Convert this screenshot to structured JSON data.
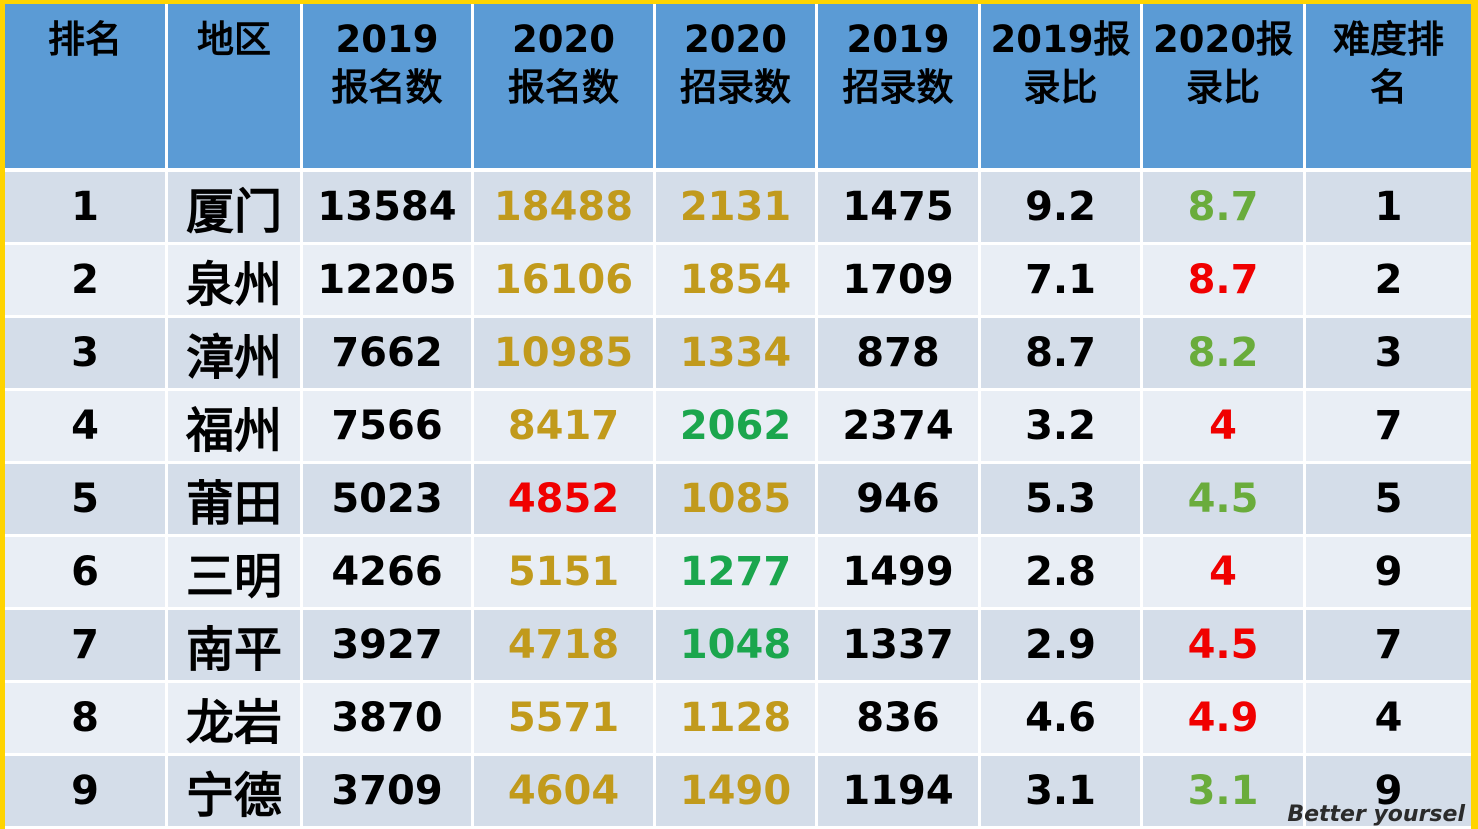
{
  "table": {
    "headers": [
      [
        "排名"
      ],
      [
        "地区"
      ],
      [
        "2019",
        "报名数"
      ],
      [
        "2020",
        "报名数"
      ],
      [
        "2020",
        "招录数"
      ],
      [
        "2019",
        "招录数"
      ],
      [
        "2019报",
        "录比"
      ],
      [
        "2020报",
        "录比"
      ],
      [
        "难度排",
        "名"
      ]
    ],
    "rows": [
      [
        "1",
        "厦门",
        "13584",
        "18488",
        "2131",
        "1475",
        "9.2",
        "8.7",
        "1"
      ],
      [
        "2",
        "泉州",
        "12205",
        "16106",
        "1854",
        "1709",
        "7.1",
        "8.7",
        "2"
      ],
      [
        "3",
        "漳州",
        "7662",
        "10985",
        "1334",
        "878",
        "8.7",
        "8.2",
        "3"
      ],
      [
        "4",
        "福州",
        "7566",
        "8417",
        "2062",
        "2374",
        "3.2",
        "4",
        "7"
      ],
      [
        "5",
        "莆田",
        "5023",
        "4852",
        "1085",
        "946",
        "5.3",
        "4.5",
        "5"
      ],
      [
        "6",
        "三明",
        "4266",
        "5151",
        "1277",
        "1499",
        "2.8",
        "4",
        "9"
      ],
      [
        "7",
        "南平",
        "3927",
        "4718",
        "1048",
        "1337",
        "2.9",
        "4.5",
        "7"
      ],
      [
        "8",
        "龙岩",
        "3870",
        "5571",
        "1128",
        "836",
        "4.6",
        "4.9",
        "4"
      ],
      [
        "9",
        "宁德",
        "3709",
        "4604",
        "1490",
        "1194",
        "3.1",
        "3.1",
        "9"
      ]
    ],
    "cell_colors": [
      [
        "black",
        "black",
        "black",
        "gold",
        "gold",
        "black",
        "black",
        "lgreen",
        "black"
      ],
      [
        "black",
        "black",
        "black",
        "gold",
        "gold",
        "black",
        "black",
        "red",
        "black"
      ],
      [
        "black",
        "black",
        "black",
        "gold",
        "gold",
        "black",
        "black",
        "lgreen",
        "black"
      ],
      [
        "black",
        "black",
        "black",
        "gold",
        "green",
        "black",
        "black",
        "red",
        "black"
      ],
      [
        "black",
        "black",
        "black",
        "red",
        "gold",
        "black",
        "black",
        "lgreen",
        "black"
      ],
      [
        "black",
        "black",
        "black",
        "gold",
        "green",
        "black",
        "black",
        "red",
        "black"
      ],
      [
        "black",
        "black",
        "black",
        "gold",
        "green",
        "black",
        "black",
        "red",
        "black"
      ],
      [
        "black",
        "black",
        "black",
        "gold",
        "gold",
        "black",
        "black",
        "red",
        "black"
      ],
      [
        "black",
        "black",
        "black",
        "gold",
        "gold",
        "black",
        "black",
        "lgreen",
        "black"
      ]
    ],
    "palette": {
      "header_bg": "#5b9bd5",
      "row_odd_bg": "#d4dde9",
      "row_even_bg": "#e9eef5",
      "gold": "#c19a1c",
      "green": "#1ba64d",
      "lgreen": "#6aac3c",
      "red": "#f00000",
      "frame": "#ffd400"
    }
  },
  "watermark": "Better yoursel"
}
